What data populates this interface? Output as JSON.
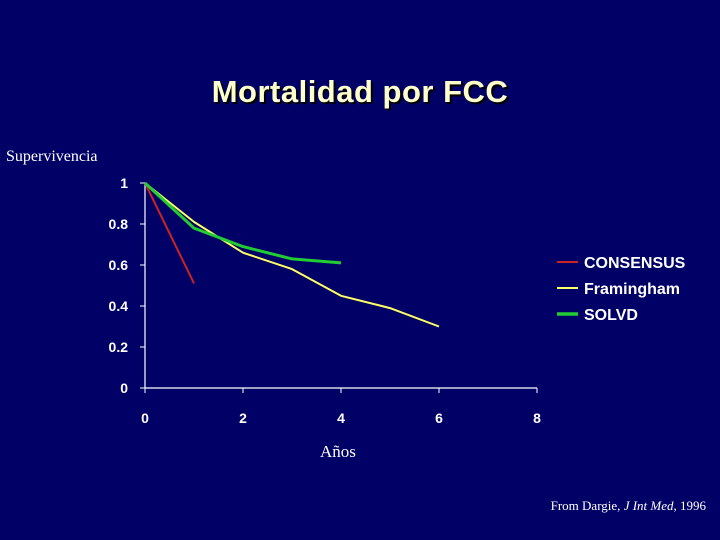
{
  "slide": {
    "title": "Mortalidad por FCC",
    "source_prefix": "From Dargie, ",
    "source_journal": "J Int Med",
    "source_year": ", 1996"
  },
  "chart_data": {
    "type": "line",
    "title": "Mortalidad por FCC",
    "xlabel": "Años",
    "ylabel": "Supervivencia",
    "xlim": [
      0,
      8
    ],
    "ylim": [
      0,
      1
    ],
    "x_ticks": [
      0,
      2,
      4,
      6,
      8
    ],
    "y_ticks": [
      0,
      0.2,
      0.4,
      0.6,
      0.8,
      1
    ],
    "y_tick_labels": [
      "0",
      "0.2",
      "0.4",
      "0.6",
      "0.8",
      "1"
    ],
    "grid": false,
    "legend_position": "right",
    "series": [
      {
        "name": "CONSENSUS",
        "color": "#cc2222",
        "x": [
          0,
          1
        ],
        "y": [
          1.0,
          0.51
        ]
      },
      {
        "name": "Framingham",
        "color": "#ffff66",
        "x": [
          0,
          1,
          2,
          3,
          4,
          5,
          6
        ],
        "y": [
          1.0,
          0.81,
          0.66,
          0.58,
          0.45,
          0.39,
          0.3
        ]
      },
      {
        "name": "SOLVD",
        "color": "#22cc33",
        "x": [
          0,
          1,
          2,
          3,
          4
        ],
        "y": [
          1.0,
          0.78,
          0.69,
          0.63,
          0.61
        ]
      }
    ]
  }
}
